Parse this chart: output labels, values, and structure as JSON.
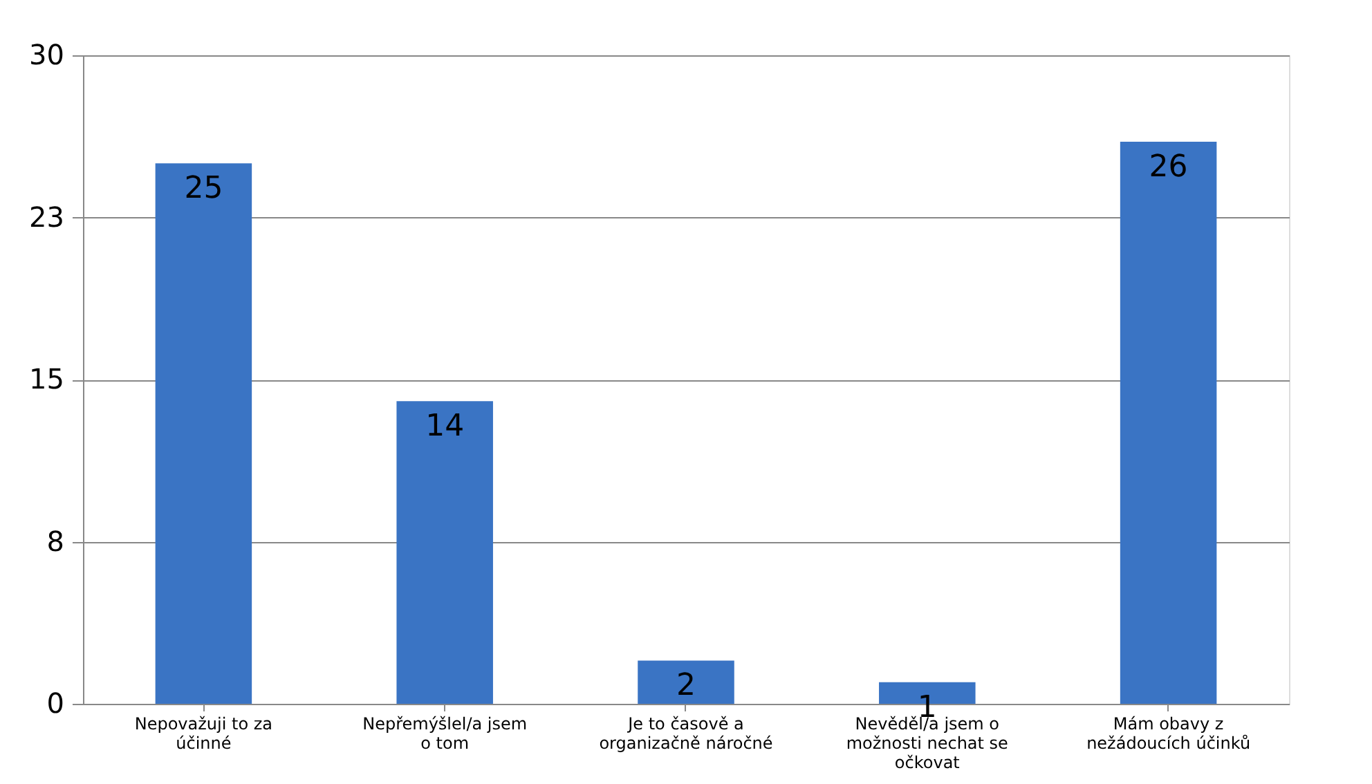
{
  "chart_data": {
    "type": "bar",
    "categories": [
      "Nepovažuji to za účinné",
      "Nepřemýšlel/a jsem o tom",
      "Je to časově a organizačně náročné",
      "Nevěděl/a jsem o možnosti nechat se očkovat",
      "Mám obavy z nežádoucích účinků"
    ],
    "values": [
      25,
      14,
      2,
      1,
      26
    ],
    "color": "#3a74c4",
    "ylim": [
      0,
      30
    ],
    "yticks": [
      0,
      {
        "value": 7.5,
        "label": "8"
      },
      15,
      {
        "value": 22.5,
        "label": "23"
      },
      30
    ],
    "grid": "y",
    "data_labels": true
  }
}
